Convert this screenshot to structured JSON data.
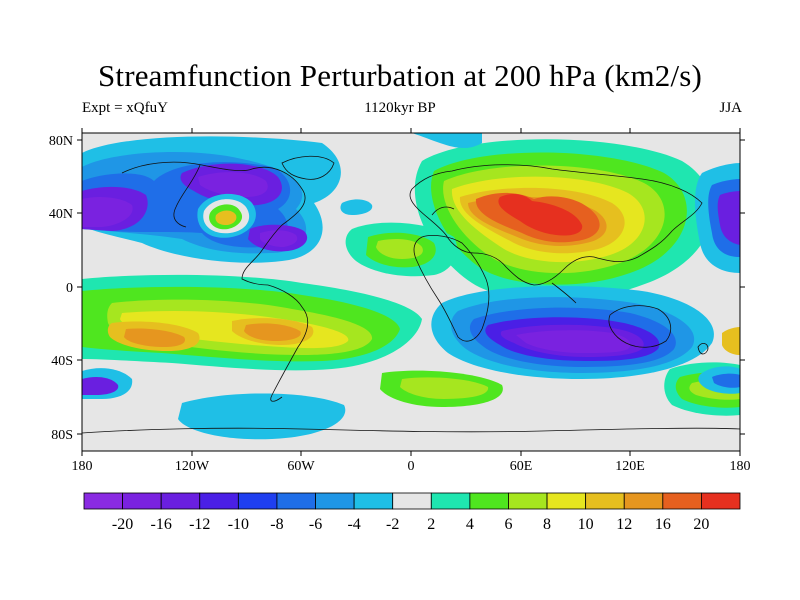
{
  "header": {
    "title": "Streamfunction Perturbation at 200 hPa (km2/s)",
    "left_subtitle": "Expt = xQfuY",
    "center_subtitle": "1120kyr BP",
    "right_subtitle": "JJA"
  },
  "axes": {
    "lat_ticks": [
      "80N",
      "40N",
      "0",
      "40S",
      "80S"
    ],
    "lon_ticks": [
      "180",
      "120W",
      "60W",
      "0",
      "60E",
      "120E",
      "180"
    ]
  },
  "colorbar": {
    "labels": [
      "-20",
      "-16",
      "-12",
      "-10",
      "-8",
      "-6",
      "-4",
      "-2",
      "2",
      "4",
      "6",
      "8",
      "10",
      "12",
      "16",
      "20"
    ],
    "colors": [
      "#8a2be2",
      "#7a22e0",
      "#6a1fe0",
      "#4a1fe6",
      "#1f3ff0",
      "#1f6ee8",
      "#1f96e6",
      "#1fbfe6",
      "#e6e6e6",
      "#1fe6b0",
      "#4fe61f",
      "#a6e61f",
      "#e6e61f",
      "#e6bf1f",
      "#e6961f",
      "#e6601f",
      "#e6301f"
    ]
  },
  "map_colors": {
    "background": "#e6e6e6",
    "coast": "#111111",
    "frame": "#000000"
  }
}
